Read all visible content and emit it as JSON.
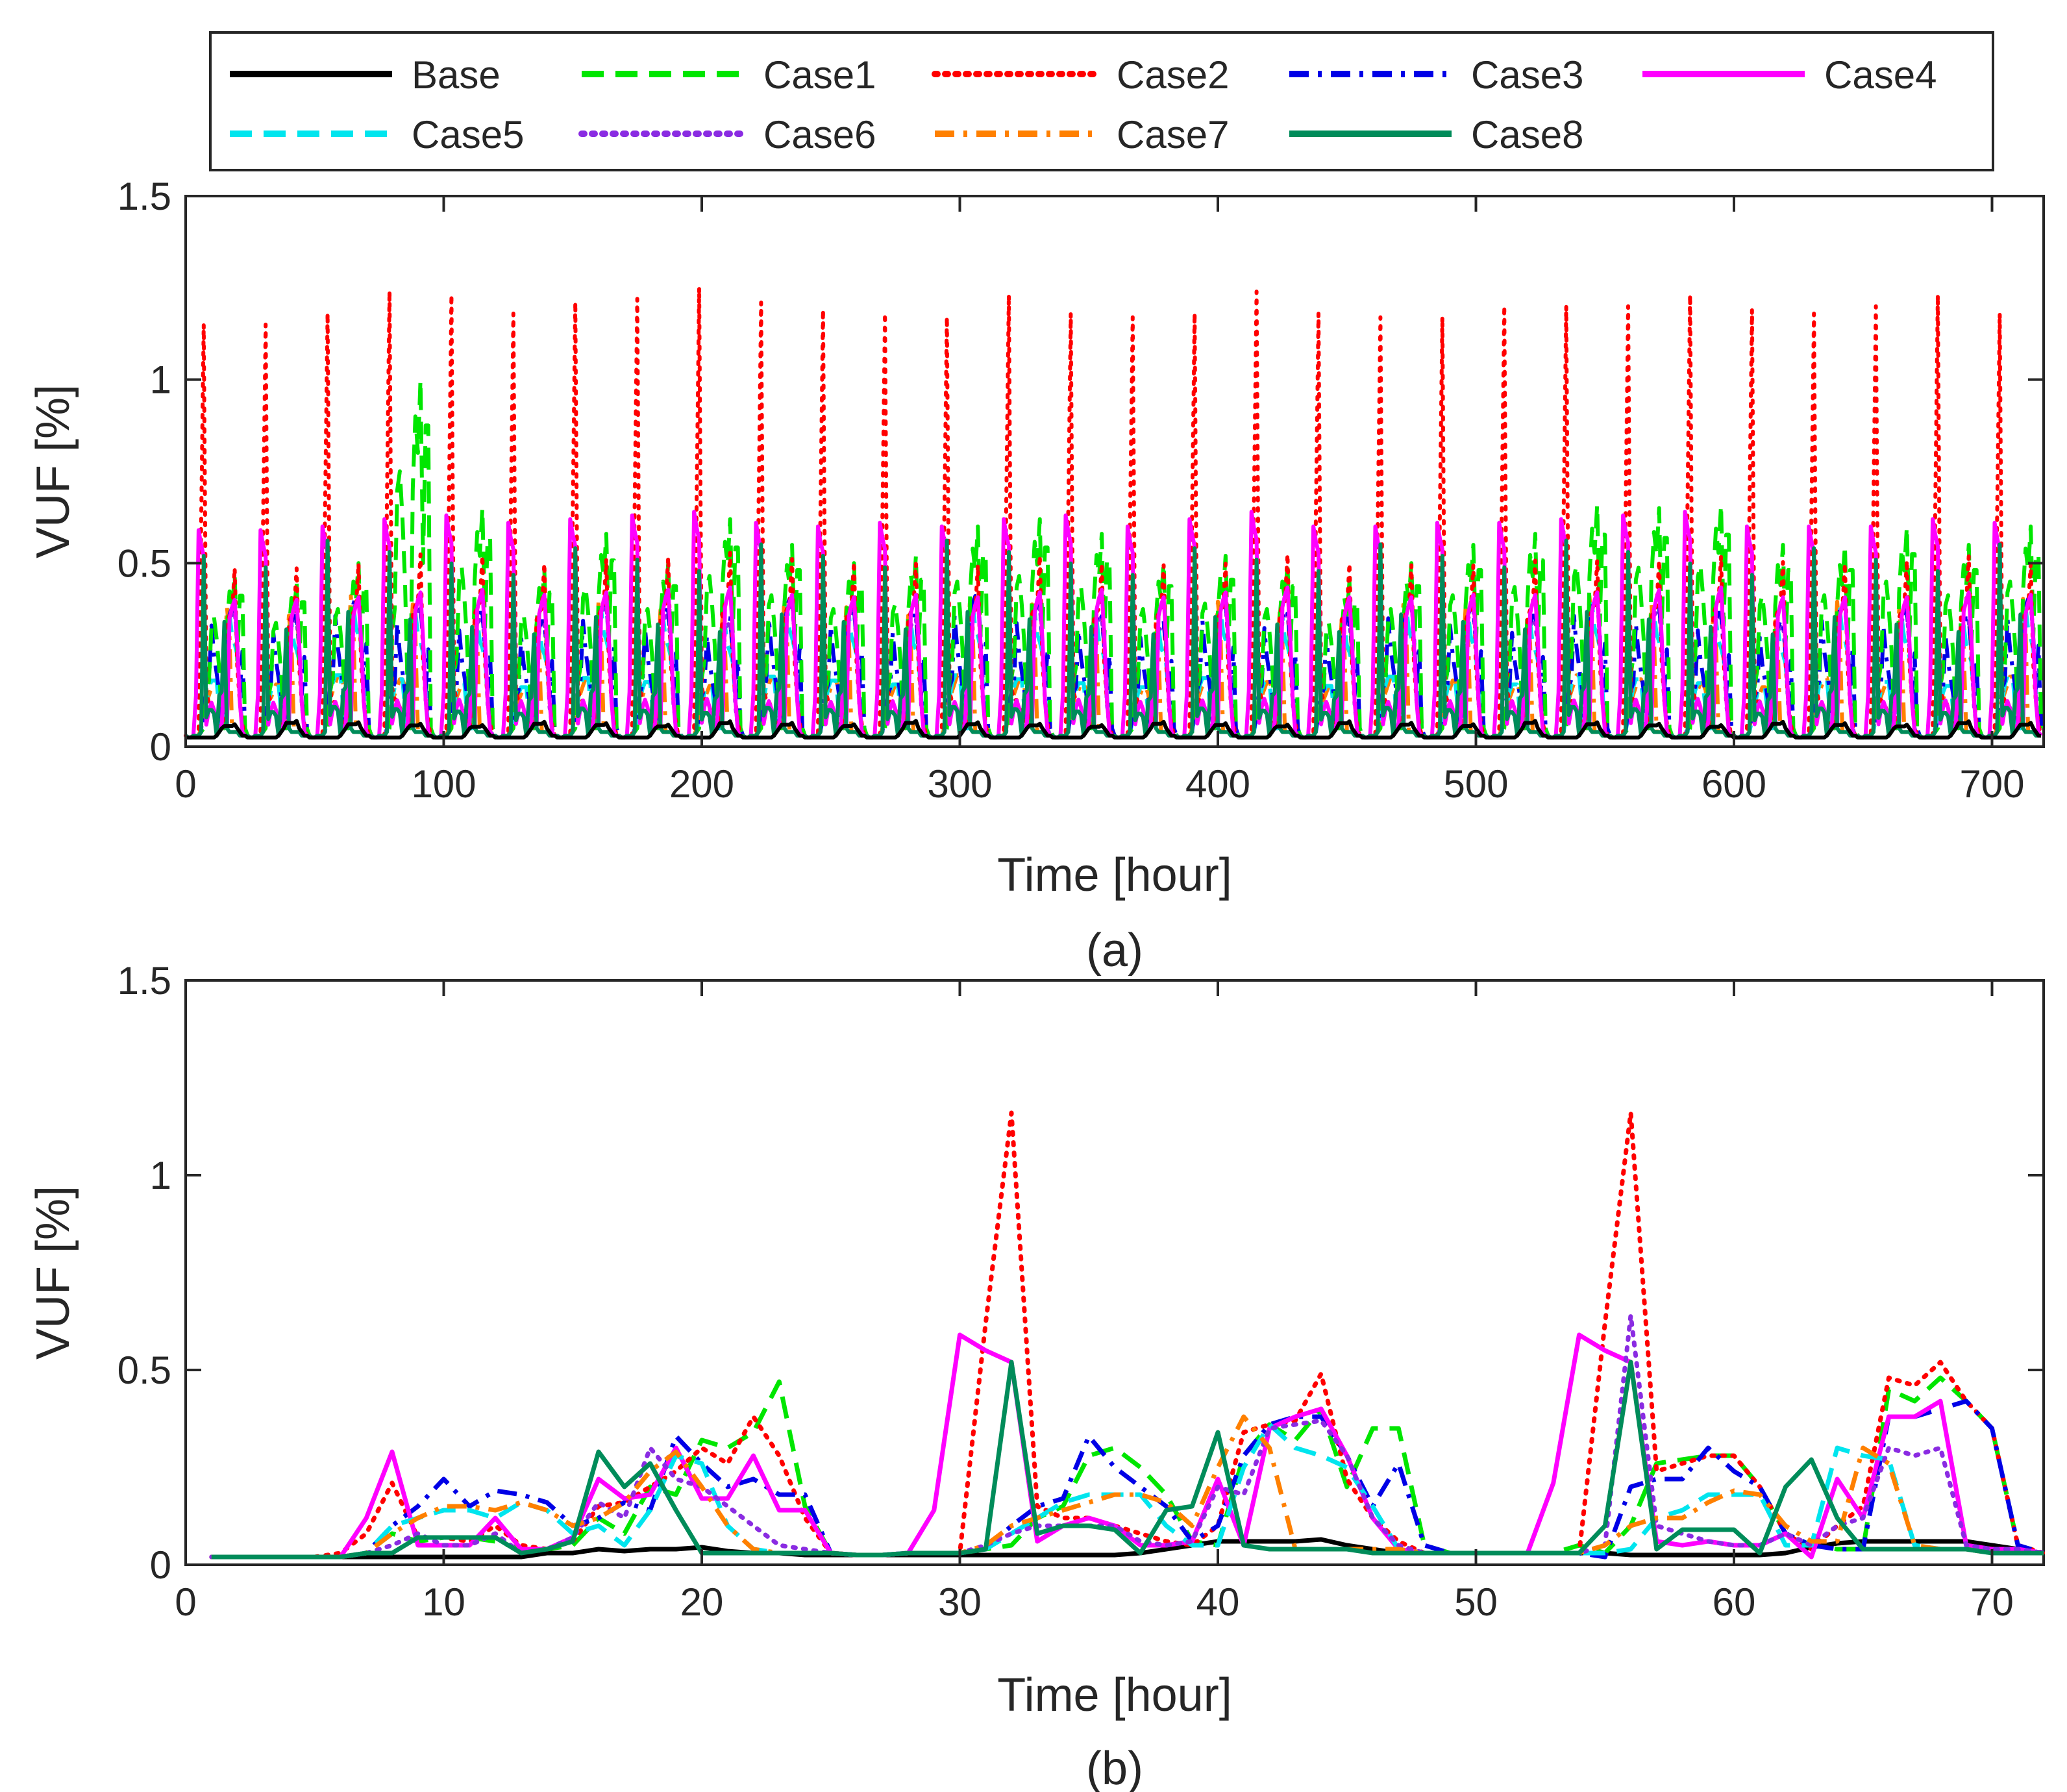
{
  "legend": {
    "entries": [
      {
        "key": "base",
        "label": "Base",
        "color": "#000000",
        "dash": "solid"
      },
      {
        "key": "case1",
        "label": "Case1",
        "color": "#00e600",
        "dash": "dashed"
      },
      {
        "key": "case2",
        "label": "Case2",
        "color": "#ff0000",
        "dash": "dotted"
      },
      {
        "key": "case3",
        "label": "Case3",
        "color": "#0000e6",
        "dash": "dashdot"
      },
      {
        "key": "case4",
        "label": "Case4",
        "color": "#ff00ff",
        "dash": "solid"
      },
      {
        "key": "case5",
        "label": "Case5",
        "color": "#00e5ee",
        "dash": "dashed"
      },
      {
        "key": "case6",
        "label": "Case6",
        "color": "#8a2be2",
        "dash": "dotted"
      },
      {
        "key": "case7",
        "label": "Case7",
        "color": "#ff8000",
        "dash": "dashdot"
      },
      {
        "key": "case8",
        "label": "Case8",
        "color": "#008c5a",
        "dash": "solid"
      }
    ]
  },
  "chart_data": [
    {
      "id": "a",
      "type": "line",
      "caption": "(a)",
      "xlabel": "Time [hour]",
      "ylabel": "VUF [%]",
      "xlim": [
        0,
        720
      ],
      "ylim": [
        0,
        1.5
      ],
      "xticks": [
        0,
        100,
        200,
        300,
        400,
        500,
        600,
        700
      ],
      "yticks": [
        0,
        0.5,
        1,
        1.5
      ],
      "ytick_labels": [
        "0",
        "0.5",
        "1",
        "1.5"
      ],
      "daily_pattern_note": "30 days of 24-hour profiles",
      "daily_peaks": {
        "case2": [
          1.15,
          1.15,
          1.18,
          1.24,
          1.23,
          1.18,
          1.21,
          1.22,
          1.25,
          1.21,
          1.19,
          1.18,
          1.17,
          1.23,
          1.18,
          1.17,
          1.18,
          1.24,
          1.18,
          1.17,
          1.17,
          1.2,
          1.2,
          1.2,
          1.23,
          1.19,
          1.18,
          1.2,
          1.23,
          1.18
        ],
        "case4": [
          0.59,
          0.59,
          0.6,
          0.62,
          0.63,
          0.61,
          0.62,
          0.63,
          0.64,
          0.61,
          0.6,
          0.61,
          0.6,
          0.62,
          0.63,
          0.6,
          0.62,
          0.64,
          0.6,
          0.6,
          0.61,
          0.61,
          0.62,
          0.63,
          0.64,
          0.6,
          0.6,
          0.6,
          0.62,
          0.61
        ],
        "case1": [
          0.47,
          0.45,
          0.5,
          1.0,
          0.65,
          0.48,
          0.58,
          0.5,
          0.62,
          0.55,
          0.5,
          0.52,
          0.6,
          0.62,
          0.58,
          0.5,
          0.52,
          0.5,
          0.45,
          0.5,
          0.55,
          0.58,
          0.66,
          0.65,
          0.66,
          0.55,
          0.55,
          0.6,
          0.55,
          0.6
        ]
      }
    },
    {
      "id": "b",
      "type": "line",
      "caption": "(b)",
      "xlabel": "Time [hour]",
      "ylabel": "VUF [%]",
      "xlim": [
        0,
        72
      ],
      "ylim": [
        0,
        1.5
      ],
      "xticks": [
        0,
        10,
        20,
        30,
        40,
        50,
        60,
        70
      ],
      "yticks": [
        0,
        0.5,
        1,
        1.5
      ],
      "ytick_labels": [
        "0",
        "0.5",
        "1",
        "1.5"
      ],
      "x": [
        1,
        2,
        3,
        4,
        5,
        6,
        7,
        8,
        9,
        10,
        11,
        12,
        13,
        14,
        15,
        16,
        17,
        18,
        19,
        20,
        21,
        22,
        23,
        24,
        25,
        26,
        27,
        28,
        29,
        30,
        31,
        32,
        33,
        34,
        35,
        36,
        37,
        38,
        39,
        40,
        41,
        42,
        43,
        44,
        45,
        46,
        47,
        48,
        49,
        50,
        51,
        52,
        53,
        54,
        55,
        56,
        57,
        58,
        59,
        60,
        61,
        62,
        63,
        64,
        65,
        66,
        67,
        68,
        69,
        70,
        71,
        72
      ],
      "series": [
        {
          "name": "Base",
          "values": [
            0.02,
            0.02,
            0.02,
            0.02,
            0.02,
            0.02,
            0.02,
            0.02,
            0.02,
            0.02,
            0.02,
            0.02,
            0.02,
            0.03,
            0.03,
            0.04,
            0.035,
            0.04,
            0.04,
            0.045,
            0.035,
            0.03,
            0.03,
            0.025,
            0.025,
            0.025,
            0.025,
            0.025,
            0.025,
            0.025,
            0.025,
            0.025,
            0.025,
            0.025,
            0.025,
            0.025,
            0.03,
            0.04,
            0.05,
            0.06,
            0.06,
            0.06,
            0.06,
            0.065,
            0.05,
            0.04,
            0.03,
            0.03,
            0.03,
            0.03,
            0.03,
            0.03,
            0.03,
            0.03,
            0.03,
            0.025,
            0.025,
            0.025,
            0.025,
            0.025,
            0.025,
            0.03,
            0.045,
            0.055,
            0.06,
            0.06,
            0.06,
            0.06,
            0.06,
            0.05,
            0.04,
            0.03
          ]
        },
        {
          "name": "Case1",
          "values": [
            0.02,
            0.02,
            0.02,
            0.02,
            0.02,
            0.02,
            0.03,
            0.08,
            0.06,
            0.07,
            0.07,
            0.06,
            0.04,
            0.04,
            0.05,
            0.12,
            0.08,
            0.2,
            0.18,
            0.32,
            0.3,
            0.34,
            0.47,
            0.15,
            0.03,
            0.025,
            0.025,
            0.03,
            0.03,
            0.03,
            0.04,
            0.05,
            0.12,
            0.15,
            0.28,
            0.3,
            0.25,
            0.18,
            0.06,
            0.05,
            0.28,
            0.36,
            0.32,
            0.4,
            0.2,
            0.35,
            0.35,
            0.05,
            0.03,
            0.03,
            0.03,
            0.03,
            0.03,
            0.05,
            0.03,
            0.1,
            0.26,
            0.27,
            0.28,
            0.28,
            0.2,
            0.08,
            0.05,
            0.04,
            0.04,
            0.45,
            0.42,
            0.48,
            0.42,
            0.35,
            0.05,
            0.03
          ]
        },
        {
          "name": "Case2",
          "values": [
            0.02,
            0.02,
            0.02,
            0.02,
            0.02,
            0.03,
            0.08,
            0.21,
            0.07,
            0.07,
            0.06,
            0.1,
            0.05,
            0.04,
            0.06,
            0.15,
            0.16,
            0.2,
            0.24,
            0.3,
            0.26,
            0.38,
            0.28,
            0.12,
            0.03,
            0.025,
            0.025,
            0.03,
            0.03,
            0.03,
            0.62,
            1.16,
            0.15,
            0.12,
            0.12,
            0.1,
            0.08,
            0.06,
            0.05,
            0.1,
            0.34,
            0.36,
            0.37,
            0.49,
            0.22,
            0.12,
            0.06,
            0.03,
            0.03,
            0.03,
            0.03,
            0.03,
            0.03,
            0.03,
            0.62,
            1.16,
            0.24,
            0.26,
            0.28,
            0.28,
            0.2,
            0.08,
            0.04,
            0.1,
            0.15,
            0.48,
            0.46,
            0.52,
            0.42,
            0.35,
            0.05,
            0.03
          ]
        },
        {
          "name": "Case3",
          "values": [
            0.02,
            0.02,
            0.02,
            0.02,
            0.02,
            0.02,
            0.03,
            0.1,
            0.15,
            0.22,
            0.15,
            0.19,
            0.18,
            0.16,
            0.1,
            0.12,
            0.16,
            0.14,
            0.33,
            0.26,
            0.2,
            0.22,
            0.18,
            0.18,
            0.03,
            0.025,
            0.025,
            0.03,
            0.03,
            0.03,
            0.04,
            0.1,
            0.15,
            0.17,
            0.33,
            0.25,
            0.2,
            0.15,
            0.06,
            0.1,
            0.28,
            0.36,
            0.38,
            0.38,
            0.28,
            0.15,
            0.26,
            0.05,
            0.03,
            0.03,
            0.03,
            0.03,
            0.03,
            0.03,
            0.02,
            0.2,
            0.22,
            0.22,
            0.3,
            0.24,
            0.2,
            0.08,
            0.05,
            0.04,
            0.04,
            0.38,
            0.38,
            0.4,
            0.42,
            0.35,
            0.05,
            0.03
          ]
        },
        {
          "name": "Case4",
          "values": [
            0.02,
            0.02,
            0.02,
            0.02,
            0.02,
            0.02,
            0.12,
            0.29,
            0.05,
            0.05,
            0.05,
            0.12,
            0.04,
            0.04,
            0.07,
            0.22,
            0.17,
            0.18,
            0.3,
            0.17,
            0.17,
            0.28,
            0.14,
            0.14,
            0.03,
            0.025,
            0.025,
            0.03,
            0.14,
            0.59,
            0.55,
            0.52,
            0.06,
            0.1,
            0.12,
            0.1,
            0.05,
            0.05,
            0.06,
            0.22,
            0.05,
            0.35,
            0.38,
            0.4,
            0.28,
            0.12,
            0.04,
            0.03,
            0.03,
            0.03,
            0.03,
            0.03,
            0.21,
            0.59,
            0.55,
            0.52,
            0.06,
            0.05,
            0.06,
            0.05,
            0.05,
            0.08,
            0.02,
            0.22,
            0.12,
            0.38,
            0.38,
            0.42,
            0.05,
            0.04,
            0.04,
            0.03
          ]
        },
        {
          "name": "Case5",
          "values": [
            0.02,
            0.02,
            0.02,
            0.02,
            0.02,
            0.02,
            0.03,
            0.1,
            0.12,
            0.14,
            0.14,
            0.12,
            0.16,
            0.14,
            0.08,
            0.1,
            0.05,
            0.14,
            0.28,
            0.26,
            0.1,
            0.04,
            0.03,
            0.03,
            0.03,
            0.025,
            0.025,
            0.03,
            0.03,
            0.03,
            0.04,
            0.08,
            0.12,
            0.16,
            0.18,
            0.18,
            0.18,
            0.1,
            0.05,
            0.05,
            0.25,
            0.36,
            0.3,
            0.28,
            0.25,
            0.15,
            0.04,
            0.03,
            0.03,
            0.03,
            0.03,
            0.03,
            0.03,
            0.03,
            0.03,
            0.04,
            0.12,
            0.14,
            0.18,
            0.18,
            0.18,
            0.05,
            0.05,
            0.3,
            0.28,
            0.27,
            0.05,
            0.04,
            0.04,
            0.03,
            0.03,
            0.03
          ]
        },
        {
          "name": "Case6",
          "values": [
            0.02,
            0.02,
            0.02,
            0.02,
            0.02,
            0.02,
            0.03,
            0.05,
            0.08,
            0.05,
            0.05,
            0.08,
            0.03,
            0.04,
            0.07,
            0.16,
            0.12,
            0.3,
            0.22,
            0.2,
            0.15,
            0.1,
            0.05,
            0.04,
            0.03,
            0.025,
            0.025,
            0.03,
            0.03,
            0.03,
            0.05,
            0.08,
            0.1,
            0.1,
            0.1,
            0.1,
            0.06,
            0.05,
            0.06,
            0.2,
            0.18,
            0.35,
            0.36,
            0.37,
            0.28,
            0.12,
            0.05,
            0.03,
            0.03,
            0.03,
            0.03,
            0.03,
            0.03,
            0.03,
            0.05,
            0.64,
            0.1,
            0.08,
            0.06,
            0.05,
            0.05,
            0.08,
            0.05,
            0.1,
            0.12,
            0.3,
            0.28,
            0.3,
            0.05,
            0.04,
            0.04,
            0.03
          ]
        },
        {
          "name": "Case7",
          "values": [
            0.02,
            0.02,
            0.02,
            0.02,
            0.02,
            0.02,
            0.03,
            0.08,
            0.12,
            0.15,
            0.15,
            0.14,
            0.16,
            0.14,
            0.1,
            0.12,
            0.16,
            0.24,
            0.29,
            0.2,
            0.1,
            0.04,
            0.03,
            0.03,
            0.03,
            0.025,
            0.025,
            0.03,
            0.03,
            0.03,
            0.05,
            0.1,
            0.12,
            0.14,
            0.16,
            0.18,
            0.18,
            0.16,
            0.1,
            0.25,
            0.38,
            0.3,
            0.04,
            0.04,
            0.04,
            0.04,
            0.04,
            0.03,
            0.03,
            0.03,
            0.03,
            0.03,
            0.03,
            0.03,
            0.05,
            0.1,
            0.12,
            0.12,
            0.16,
            0.19,
            0.18,
            0.1,
            0.06,
            0.06,
            0.3,
            0.26,
            0.05,
            0.04,
            0.04,
            0.03,
            0.03,
            0.03
          ]
        },
        {
          "name": "Case8",
          "values": [
            0.02,
            0.02,
            0.02,
            0.02,
            0.02,
            0.02,
            0.03,
            0.03,
            0.07,
            0.07,
            0.07,
            0.07,
            0.03,
            0.04,
            0.06,
            0.29,
            0.2,
            0.26,
            0.14,
            0.03,
            0.03,
            0.03,
            0.03,
            0.03,
            0.03,
            0.025,
            0.025,
            0.03,
            0.03,
            0.03,
            0.04,
            0.52,
            0.08,
            0.1,
            0.1,
            0.09,
            0.03,
            0.14,
            0.15,
            0.34,
            0.05,
            0.04,
            0.04,
            0.04,
            0.04,
            0.03,
            0.03,
            0.03,
            0.03,
            0.03,
            0.03,
            0.03,
            0.03,
            0.03,
            0.1,
            0.52,
            0.04,
            0.09,
            0.09,
            0.09,
            0.03,
            0.2,
            0.27,
            0.12,
            0.04,
            0.04,
            0.04,
            0.04,
            0.04,
            0.03,
            0.03,
            0.03
          ]
        }
      ]
    }
  ]
}
